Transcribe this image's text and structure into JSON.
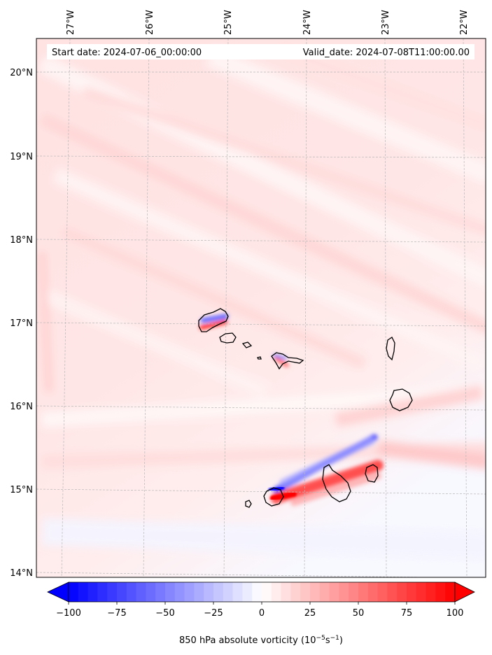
{
  "map": {
    "start_date": "Start date: 2024-07-06_00:00:00",
    "valid_date": "Valid_date: 2024-07-08T11:00:00.00",
    "lon_labels": [
      "27°W",
      "26°W",
      "25°W",
      "24°W",
      "23°W",
      "22°W"
    ],
    "lat_labels": [
      "20°N",
      "19°N",
      "18°N",
      "17°N",
      "16°N",
      "15°N",
      "14°N"
    ],
    "colors": {
      "negative": "#0000ff",
      "zero": "#ffffff",
      "positive": "#ff0000",
      "coastline": "#000000"
    }
  },
  "colorbar": {
    "title_main": "850 hPa absolute vorticity (10",
    "title_exp1": "−5",
    "title_mid": "s",
    "title_exp2": "−1",
    "title_end": ")",
    "ticks": [
      "−100",
      "−75",
      "−50",
      "−25",
      "0",
      "25",
      "50",
      "75",
      "100"
    ],
    "range": [
      -100,
      100
    ],
    "extend": "both"
  }
}
